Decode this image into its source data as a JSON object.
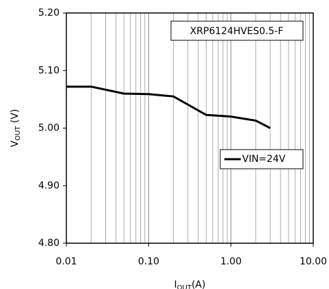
{
  "chart_data": {
    "type": "line",
    "log_x": true,
    "grid": "x",
    "ylabel": {
      "main": "V",
      "sub": "OUT",
      "unit": " (V)"
    },
    "xlabel": {
      "main": "I",
      "sub": "OUT",
      "unit": "(A)"
    },
    "annotation": "XRP6124HVES0.5-F",
    "legend": "right",
    "x": [
      0.01,
      0.02,
      0.05,
      0.1,
      0.2,
      0.5,
      1,
      2,
      3
    ],
    "series": [
      {
        "name": "VIN=24V",
        "color": "#000000",
        "values": [
          5.072,
          5.072,
          5.06,
          5.059,
          5.055,
          5.023,
          5.02,
          5.013,
          5.0
        ]
      }
    ],
    "xlim": [
      0.01,
      10
    ],
    "xticks": [
      0.01,
      {
        "value": 0.1,
        "label": "0.10"
      },
      {
        "value": 1,
        "label": "1.00"
      },
      {
        "value": 10,
        "label": "10.00"
      }
    ],
    "ylim": [
      4.8,
      5.2
    ],
    "yticks": [
      {
        "value": 4.8,
        "label": "4.80"
      },
      {
        "value": 4.9,
        "label": "4.90"
      },
      {
        "value": 5.0,
        "label": "5.00"
      },
      {
        "value": 5.1,
        "label": "5.10"
      },
      {
        "value": 5.2,
        "label": "5.20"
      }
    ]
  }
}
